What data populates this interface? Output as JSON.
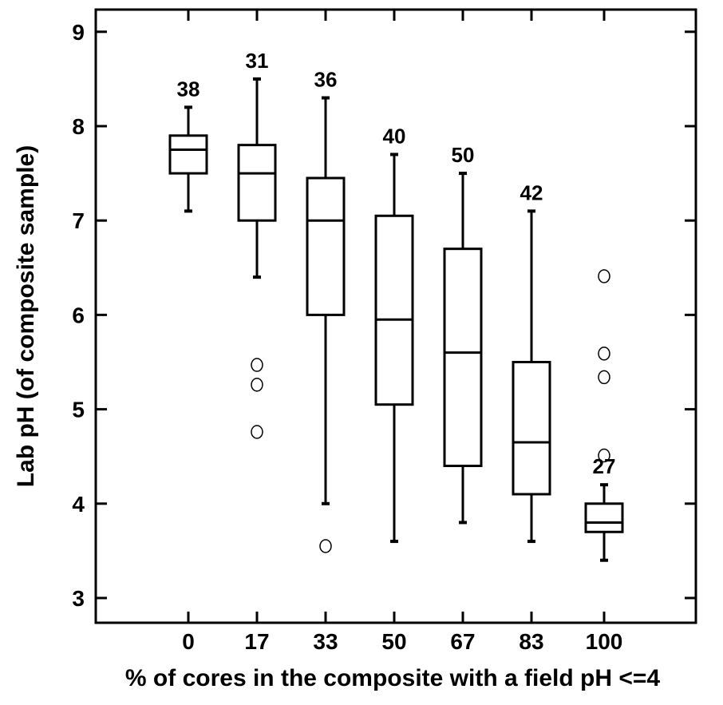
{
  "chart_data": {
    "type": "box",
    "title": "",
    "xlabel": "% of cores in the composite with a field pH <=4",
    "ylabel": "Lab pH (of composite sample)",
    "ylim": [
      2.8,
      9.2
    ],
    "yticks": [
      "3",
      "4",
      "5",
      "6",
      "7",
      "8",
      "9"
    ],
    "grid": false,
    "categories": [
      "0",
      "17",
      "33",
      "50",
      "67",
      "83",
      "100"
    ],
    "boxes": [
      {
        "category": "0",
        "n": "38",
        "whisker_low": 7.1,
        "q1": 7.5,
        "median": 7.75,
        "q3": 7.9,
        "whisker_high": 8.2,
        "outliers": []
      },
      {
        "category": "17",
        "n": "31",
        "whisker_low": 6.4,
        "q1": 7.0,
        "median": 7.5,
        "q3": 7.8,
        "whisker_high": 8.5,
        "outliers": [
          5.47,
          5.26,
          4.76
        ]
      },
      {
        "category": "33",
        "n": "36",
        "whisker_low": 4.0,
        "q1": 6.0,
        "median": 7.0,
        "q3": 7.45,
        "whisker_high": 8.3,
        "outliers": [
          3.55
        ]
      },
      {
        "category": "50",
        "n": "40",
        "whisker_low": 3.6,
        "q1": 5.05,
        "median": 5.95,
        "q3": 7.05,
        "whisker_high": 7.7,
        "outliers": []
      },
      {
        "category": "67",
        "n": "50",
        "whisker_low": 3.8,
        "q1": 4.4,
        "median": 5.6,
        "q3": 6.7,
        "whisker_high": 7.5,
        "outliers": []
      },
      {
        "category": "83",
        "n": "42",
        "whisker_low": 3.6,
        "q1": 4.1,
        "median": 4.65,
        "q3": 5.5,
        "whisker_high": 7.1,
        "outliers": []
      },
      {
        "category": "100",
        "n": "27",
        "whisker_low": 3.4,
        "q1": 3.7,
        "median": 3.8,
        "q3": 4.0,
        "whisker_high": 4.2,
        "outliers": [
          6.41,
          5.59,
          5.34,
          4.51
        ]
      }
    ]
  }
}
